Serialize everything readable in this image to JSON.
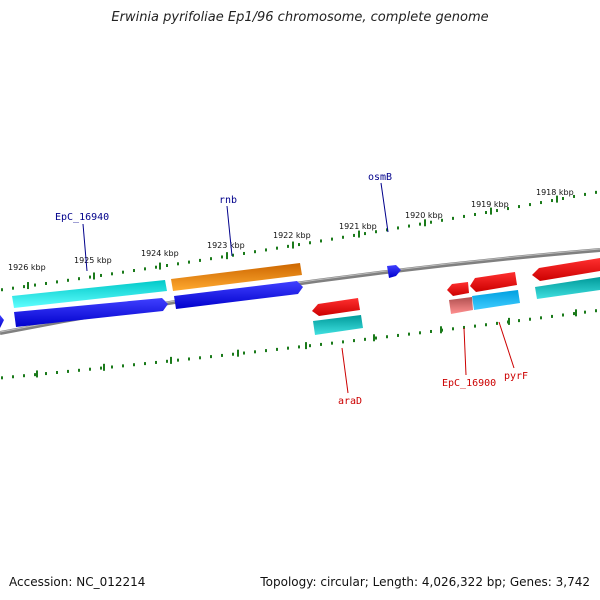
{
  "title": "Erwinia pyrifoliae Ep1/96 chromosome, complete genome",
  "footer": {
    "accession": "Accession: NC_012214",
    "info": "Topology: circular; Length: 4,026,322 bp; Genes: 3,742"
  },
  "ticks": [
    {
      "label": "1926 kbp",
      "kbp": 1926
    },
    {
      "label": "1925 kbp",
      "kbp": 1925
    },
    {
      "label": "1924 kbp",
      "kbp": 1924
    },
    {
      "label": "1923 kbp",
      "kbp": 1923
    },
    {
      "label": "1922 kbp",
      "kbp": 1922
    },
    {
      "label": "1921 kbp",
      "kbp": 1921
    },
    {
      "label": "1920 kbp",
      "kbp": 1920
    },
    {
      "label": "1919 kbp",
      "kbp": 1919
    },
    {
      "label": "1918 kbp",
      "kbp": 1918
    }
  ],
  "gene_labels": [
    {
      "label": "EpC_16940",
      "strand": "forward",
      "color": "#00008b"
    },
    {
      "label": "rnb",
      "strand": "forward",
      "color": "#00008b"
    },
    {
      "label": "osmB",
      "strand": "forward",
      "color": "#00008b"
    },
    {
      "label": "araD",
      "strand": "reverse",
      "color": "#cc0000"
    },
    {
      "label": "EpC_16900",
      "strand": "reverse",
      "color": "#cc0000"
    },
    {
      "label": "pyrF",
      "strand": "reverse",
      "color": "#cc0000"
    }
  ],
  "colors": {
    "backbone": "#7a7a7a",
    "tick": "#1a7a1a",
    "forward_gene": "#0000ee",
    "reverse_gene": "#ee0000",
    "cds_forward": "#00e5ee",
    "cds_reverse": "#00c5c5",
    "orange_gene": "#ff9900",
    "pink_gene": "#f08080",
    "sky_gene": "#00b2ee"
  }
}
